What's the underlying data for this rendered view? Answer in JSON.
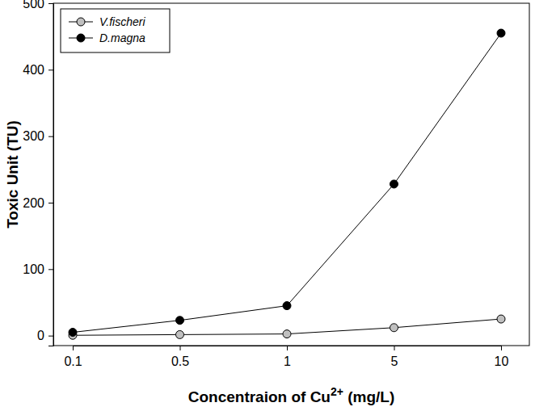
{
  "chart_data": {
    "type": "line",
    "x_label": "Concentraion of Cu2+ (mg/L)",
    "y_label": "Toxic Unit (TU)",
    "categories": [
      "0.1",
      "0.5",
      "1",
      "5",
      "10"
    ],
    "series": [
      {
        "name": "V.fischeri",
        "color": "#c0c0c0",
        "marker": "circle",
        "line_style": "solid",
        "values": [
          0.5,
          1.5,
          2.5,
          12,
          25
        ]
      },
      {
        "name": "D.magna",
        "color": "#000000",
        "marker": "circle",
        "line_style": "solid",
        "values": [
          5,
          23,
          45,
          228,
          455
        ]
      }
    ],
    "ylim": [
      -15,
      500
    ],
    "yticks": [
      0,
      100,
      200,
      300,
      400,
      500
    ],
    "legend": "upper-left",
    "grid": false
  }
}
